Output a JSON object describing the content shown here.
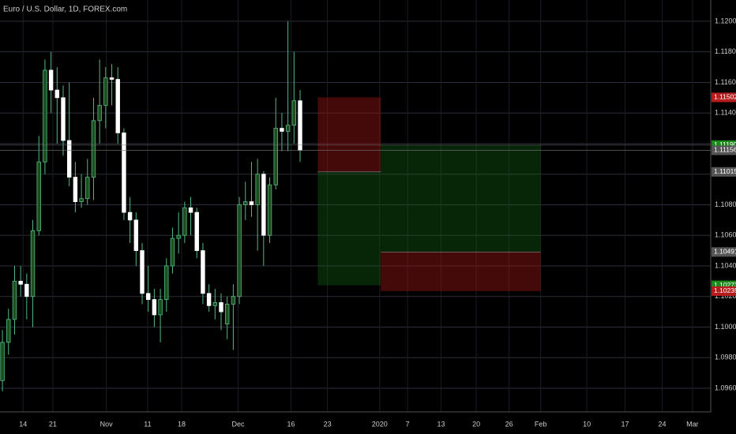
{
  "chart_data": {
    "type": "candlestick",
    "title": "Euro / U.S. Dollar, 1D, FOREX.com",
    "x": [
      0,
      1,
      2,
      3,
      4,
      5,
      6,
      7,
      8,
      9,
      10,
      11,
      12,
      13,
      14,
      15,
      16,
      17,
      18,
      19,
      20,
      21,
      22,
      23,
      24,
      25,
      26,
      27,
      28,
      29,
      30,
      31,
      32,
      33,
      34,
      35,
      36,
      37,
      38,
      39,
      40,
      41,
      42,
      43,
      44,
      45,
      46,
      47,
      48,
      49
    ],
    "open": [
      1.0965,
      1.099,
      1.1005,
      1.103,
      1.1028,
      1.102,
      1.1063,
      1.1108,
      1.1168,
      1.1155,
      1.115,
      1.1122,
      1.1098,
      1.1082,
      1.1084,
      1.1098,
      1.1135,
      1.1145,
      1.1163,
      1.1162,
      1.1127,
      1.1075,
      1.107,
      1.105,
      1.1022,
      1.1018,
      1.1008,
      1.1018,
      1.104,
      1.1058,
      1.106,
      1.1078,
      1.1075,
      1.105,
      1.1022,
      1.1014,
      1.1016,
      1.1002,
      1.1015,
      1.102,
      1.108,
      1.1082,
      1.108,
      1.11,
      1.106,
      1.1093,
      1.113,
      1.1128,
      1.1132,
      1.1148
    ],
    "high": [
      1.0998,
      1.1012,
      1.104,
      1.104,
      1.1035,
      1.107,
      1.1125,
      1.1175,
      1.118,
      1.117,
      1.1158,
      1.116,
      1.1108,
      1.11,
      1.111,
      1.115,
      1.1175,
      1.117,
      1.1172,
      1.117,
      1.113,
      1.1085,
      1.1075,
      1.1055,
      1.104,
      1.1025,
      1.1025,
      1.1045,
      1.1065,
      1.1075,
      1.1082,
      1.1085,
      1.1078,
      1.1055,
      1.1028,
      1.1025,
      1.1022,
      1.102,
      1.1028,
      1.1085,
      1.1095,
      1.1108,
      1.111,
      1.1102,
      1.1098,
      1.115,
      1.114,
      1.12,
      1.118,
      1.1155
    ],
    "low": [
      1.0958,
      1.0982,
      1.0995,
      1.102,
      1.1005,
      1.1,
      1.106,
      1.11,
      1.114,
      1.112,
      1.1112,
      1.1092,
      1.1075,
      1.1078,
      1.108,
      1.1083,
      1.112,
      1.113,
      1.1145,
      1.112,
      1.107,
      1.1055,
      1.104,
      1.1015,
      1.101,
      1.1,
      1.099,
      1.101,
      1.1035,
      1.1048,
      1.1055,
      1.106,
      1.1045,
      1.1015,
      1.101,
      1.1005,
      1.0998,
      1.0992,
      1.0985,
      1.1015,
      1.107,
      1.1072,
      1.105,
      1.104,
      1.1055,
      1.109,
      1.1115,
      1.1115,
      1.112,
      1.1108
    ],
    "close": [
      1.099,
      1.1005,
      1.103,
      1.1028,
      1.102,
      1.1063,
      1.1108,
      1.1168,
      1.1155,
      1.115,
      1.1122,
      1.1098,
      1.1082,
      1.1084,
      1.1098,
      1.1135,
      1.1145,
      1.1163,
      1.1162,
      1.1127,
      1.1075,
      1.107,
      1.105,
      1.1022,
      1.1018,
      1.1008,
      1.1018,
      1.104,
      1.1058,
      1.106,
      1.1078,
      1.1075,
      1.105,
      1.1022,
      1.1014,
      1.1016,
      1.101,
      1.1015,
      1.102,
      1.108,
      1.1082,
      1.108,
      1.11,
      1.106,
      1.1093,
      1.113,
      1.1128,
      1.1132,
      1.1148,
      1.11156
    ],
    "up_color": "#1e4d1e",
    "up_border": "#53b987",
    "down_color": "#ffffff",
    "wick_color": "#53b987",
    "xlim": [
      -0.4,
      116.6
    ],
    "ylim": [
      1.09445,
      1.12139
    ],
    "xticks": [
      {
        "value": 3.4,
        "label": "14"
      },
      {
        "value": 8.3,
        "label": "21"
      },
      {
        "value": 17.1,
        "label": "Nov"
      },
      {
        "value": 23.9,
        "label": "11"
      },
      {
        "value": 29.5,
        "label": "18"
      },
      {
        "value": 38.8,
        "label": "Dec"
      },
      {
        "value": 47.5,
        "label": "16"
      },
      {
        "value": 53.5,
        "label": "23"
      },
      {
        "value": 62.1,
        "label": "2020"
      },
      {
        "value": 66.7,
        "label": "7"
      },
      {
        "value": 72.2,
        "label": "13"
      },
      {
        "value": 78,
        "label": "20"
      },
      {
        "value": 83.4,
        "label": "26"
      },
      {
        "value": 88.6,
        "label": "Feb"
      },
      {
        "value": 96.2,
        "label": "10"
      },
      {
        "value": 102.5,
        "label": "17"
      },
      {
        "value": 108.6,
        "label": "24"
      },
      {
        "value": 113.6,
        "label": "Mar"
      }
    ],
    "yticks": [
      {
        "value": 1.096,
        "label": "1.09600"
      },
      {
        "value": 1.098,
        "label": "1.09800"
      },
      {
        "value": 1.1,
        "label": "1.10000"
      },
      {
        "value": 1.102,
        "label": "1.10200"
      },
      {
        "value": 1.104,
        "label": "1.10400"
      },
      {
        "value": 1.106,
        "label": "1.10600"
      },
      {
        "value": 1.108,
        "label": "1.10800"
      },
      {
        "value": 1.11,
        "label": "1.11000"
      },
      {
        "value": 1.112,
        "label": "1.11200"
      },
      {
        "value": 1.114,
        "label": "1.11400"
      },
      {
        "value": 1.116,
        "label": "1.11600"
      },
      {
        "value": 1.118,
        "label": "1.11800"
      },
      {
        "value": 1.12,
        "label": "1.12000"
      }
    ],
    "grid": true,
    "positions": [
      {
        "entry": 1.11015,
        "stop": 1.11502,
        "target": 1.10273,
        "x_start": 51.9,
        "x_end": 62.3
      },
      {
        "entry": 1.10491,
        "stop": 1.10235,
        "target": 1.1119,
        "x_start": 62.3,
        "x_end": 88.6
      }
    ],
    "price_labels": [
      {
        "value": 1.11502,
        "label": "1.11502",
        "color": "#b71c1c"
      },
      {
        "value": 1.1119,
        "label": "1.11190",
        "color": "#1b8a1b"
      },
      {
        "value": 1.11156,
        "label": "1.11156",
        "color": "#555555"
      },
      {
        "value": 1.11015,
        "label": "1.11015",
        "color": "#555555"
      },
      {
        "value": 1.10491,
        "label": "1.10491",
        "color": "#555555"
      },
      {
        "value": 1.10273,
        "label": "1.10273",
        "color": "#1b8a1b"
      },
      {
        "value": 1.10235,
        "label": "1.10235",
        "color": "#b71c1c"
      }
    ]
  }
}
